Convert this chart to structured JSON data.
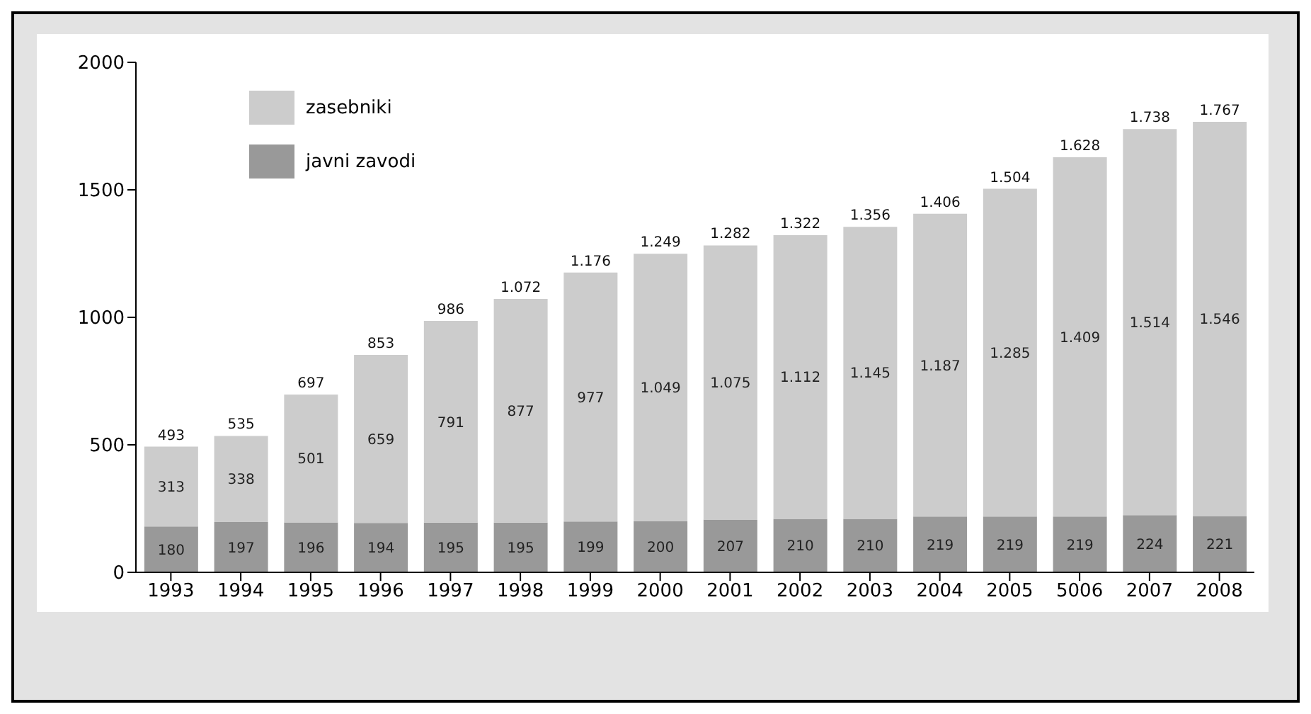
{
  "chart_data": {
    "type": "bar",
    "stacked": true,
    "categories": [
      "1993",
      "1994",
      "1995",
      "1996",
      "1997",
      "1998",
      "1999",
      "2000",
      "2001",
      "2002",
      "2003",
      "2004",
      "2005",
      "5006",
      "2007",
      "2008"
    ],
    "series": [
      {
        "name": "javni zavodi",
        "color": "#999999",
        "values": [
          180,
          197,
          196,
          194,
          195,
          195,
          199,
          200,
          207,
          210,
          210,
          219,
          219,
          219,
          224,
          221
        ],
        "value_labels": [
          "180",
          "197",
          "196",
          "194",
          "195",
          "195",
          "199",
          "200",
          "207",
          "210",
          "210",
          "219",
          "219",
          "219",
          "224",
          "221"
        ]
      },
      {
        "name": "zasebniki",
        "color": "#cccccc",
        "values": [
          313,
          338,
          501,
          659,
          791,
          877,
          977,
          1049,
          1075,
          1112,
          1145,
          1187,
          1285,
          1409,
          1514,
          1546
        ],
        "value_labels": [
          "313",
          "338",
          "501",
          "659",
          "791",
          "877",
          "977",
          "1.049",
          "1.075",
          "1.112",
          "1.145",
          "1.187",
          "1.285",
          "1.409",
          "1.514",
          "1.546"
        ]
      }
    ],
    "totals": [
      "493",
      "535",
      "697",
      "853",
      "986",
      "1.072",
      "1.176",
      "1.249",
      "1.282",
      "1.322",
      "1.356",
      "1.406",
      "1.504",
      "1.628",
      "1.738",
      "1.767"
    ],
    "ylim": [
      0,
      2000
    ],
    "yticks": [
      0,
      500,
      1000,
      1500,
      2000
    ],
    "grid": false,
    "legend": "top left"
  }
}
